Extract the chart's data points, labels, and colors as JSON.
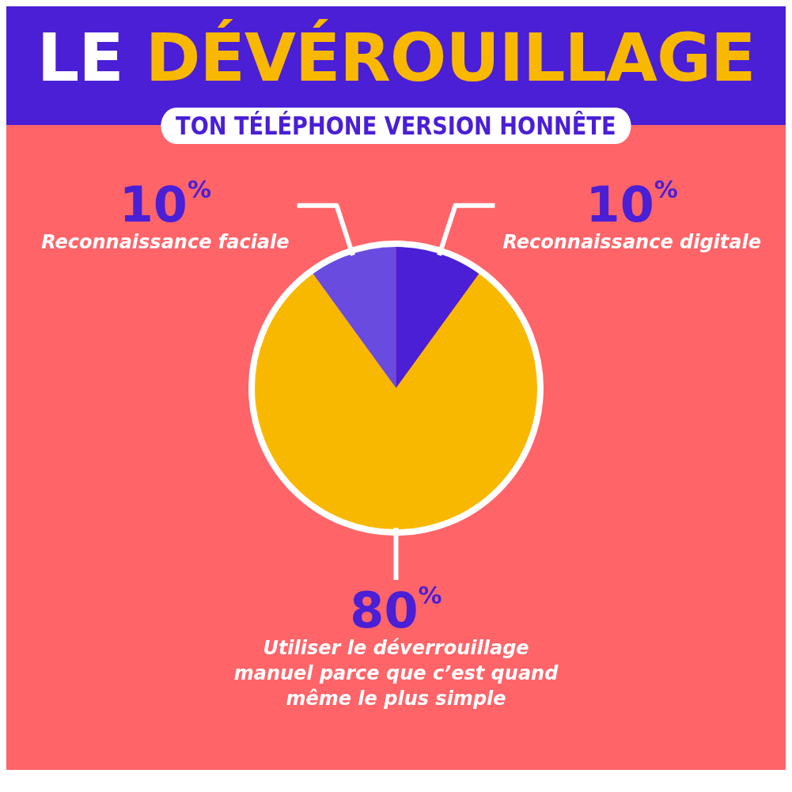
{
  "chart_data": {
    "type": "pie",
    "title": "LE DÉVÉROUILLAGE",
    "subtitle": "TON TÉLÉPHONE VERSION HONNÊTE",
    "categories": [
      "Reconnaissance faciale",
      "Reconnaissance digitale",
      "Utiliser le déverrouillage manuel parce que c’est quand même le plus simple"
    ],
    "values": [
      10,
      10,
      80
    ],
    "colors": [
      "#6a4be0",
      "#4a1fd6",
      "#f9b800"
    ],
    "value_labels": [
      "10%",
      "10%",
      "80%"
    ],
    "legend": false
  }
}
